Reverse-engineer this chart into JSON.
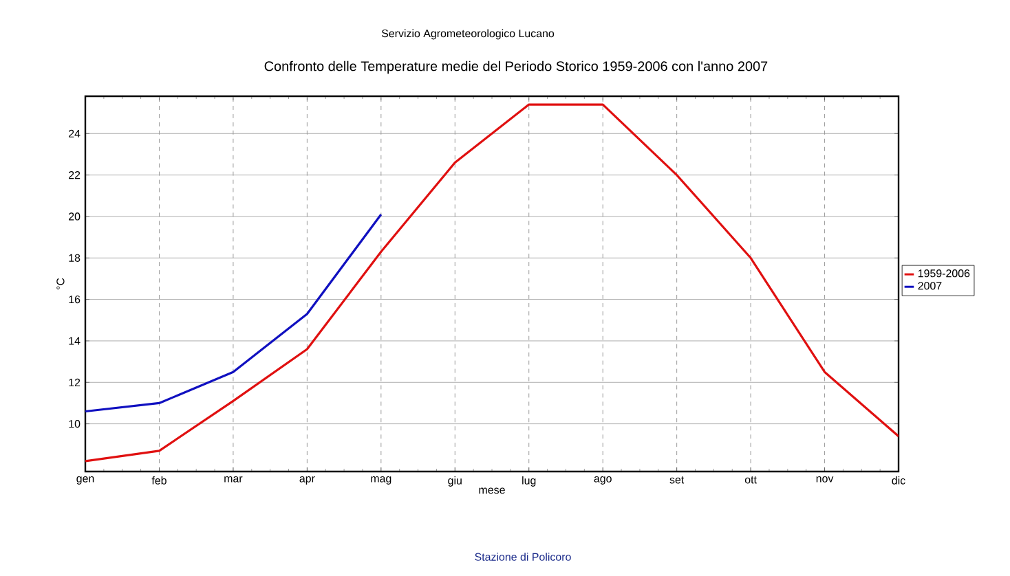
{
  "chart_data": {
    "type": "line",
    "title": "Confronto delle Temperature medie del Periodo Storico 1959-2006 con l'anno 2007",
    "subtitle": "Servizio Agrometeorologico Lucano",
    "xlabel": "mese",
    "ylabel": "°C",
    "annotations": [
      "Stazione di Policoro"
    ],
    "categories": [
      "gen",
      "feb",
      "mar",
      "apr",
      "mag",
      "giu",
      "lug",
      "ago",
      "set",
      "ott",
      "nov",
      "dic"
    ],
    "series": [
      {
        "name": "1959-2006",
        "color": "#e01010",
        "values": [
          8.2,
          8.7,
          11.1,
          13.6,
          18.3,
          22.6,
          25.4,
          25.4,
          22.0,
          18.0,
          12.5,
          9.4
        ]
      },
      {
        "name": "2007",
        "color": "#1010c0",
        "values": [
          10.6,
          11.0,
          12.5,
          15.3,
          20.1,
          null,
          null,
          null,
          null,
          null,
          null,
          null
        ]
      }
    ],
    "ylim": [
      7.7,
      25.8
    ],
    "yticks": [
      10,
      12,
      14,
      16,
      18,
      20,
      22,
      24
    ],
    "grid": true,
    "legend": "right",
    "marker": "none",
    "line_style": "solid"
  }
}
